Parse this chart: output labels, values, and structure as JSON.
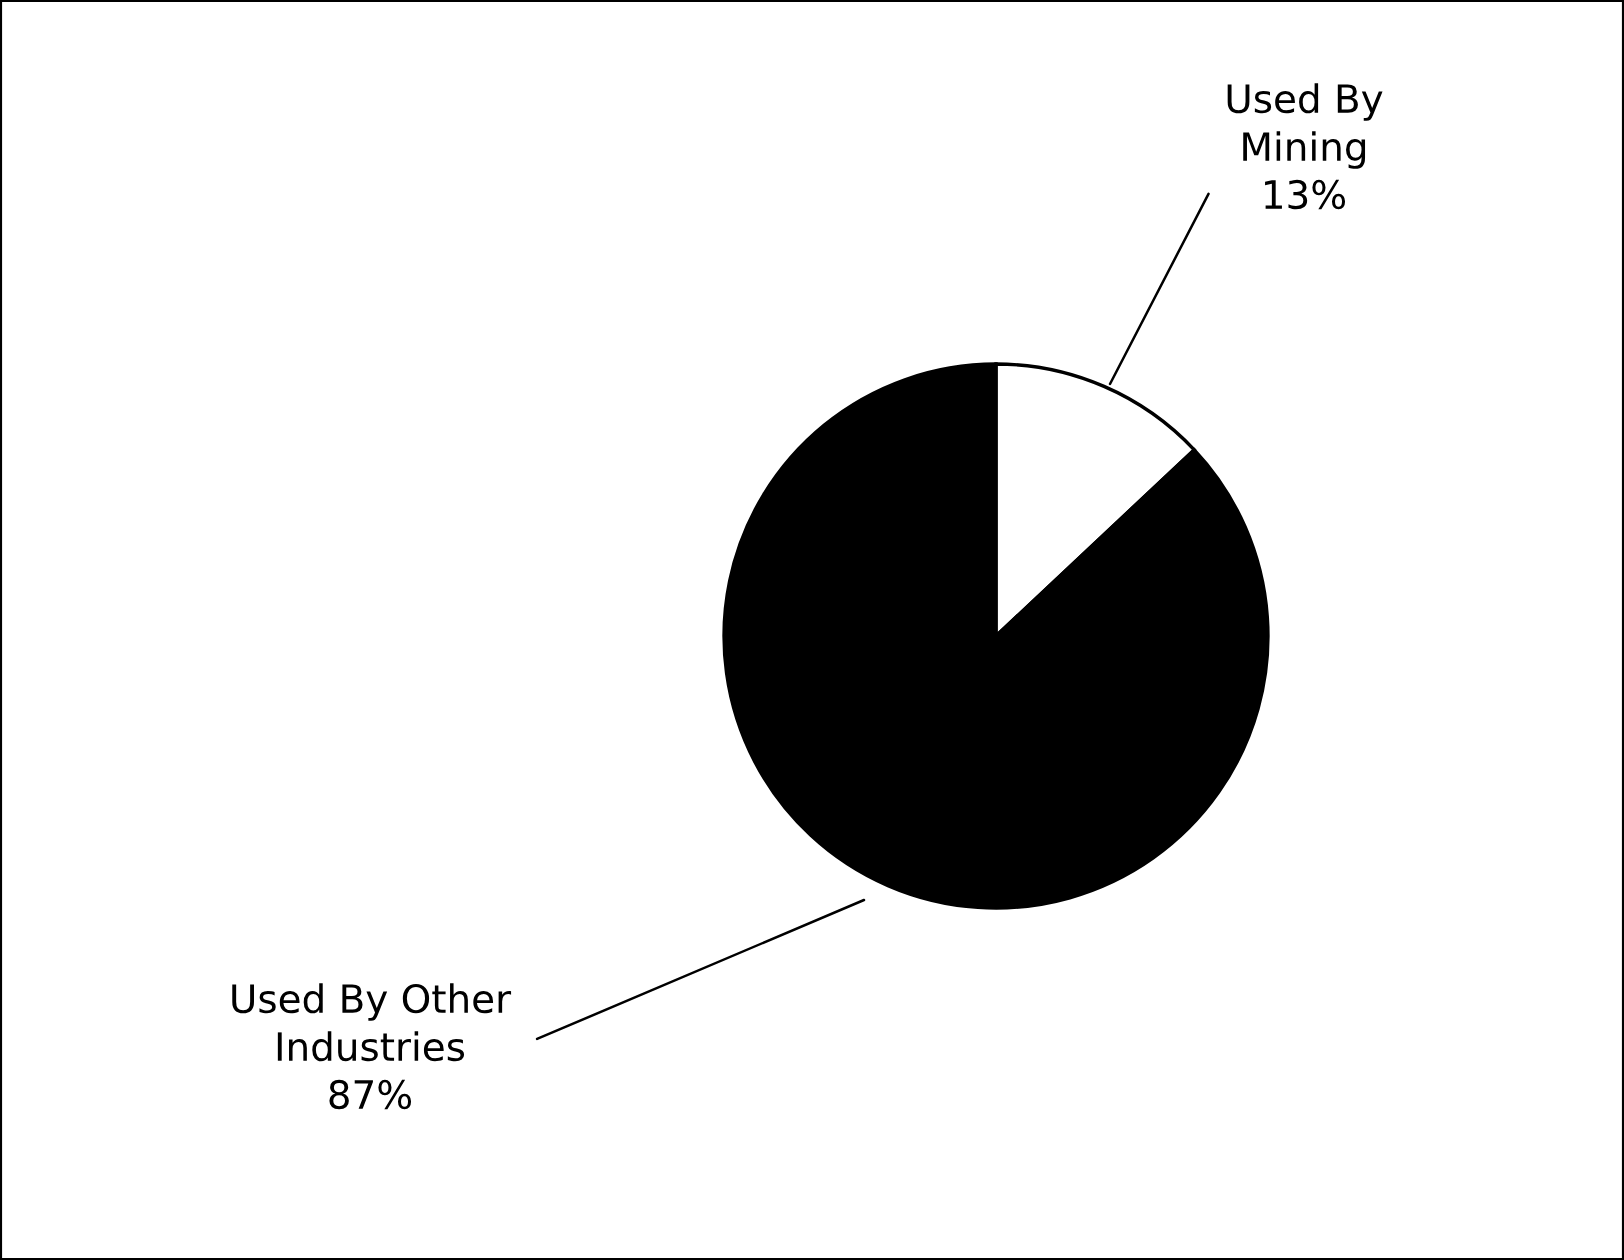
{
  "chart_data": {
    "type": "pie",
    "categories": [
      "Used By\nMining",
      "Used By Other\nIndustries"
    ],
    "values": [
      13,
      87
    ],
    "colors": [
      "#ffffff",
      "#000000"
    ],
    "value_labels": [
      "13%",
      "87%"
    ],
    "legend": false
  }
}
